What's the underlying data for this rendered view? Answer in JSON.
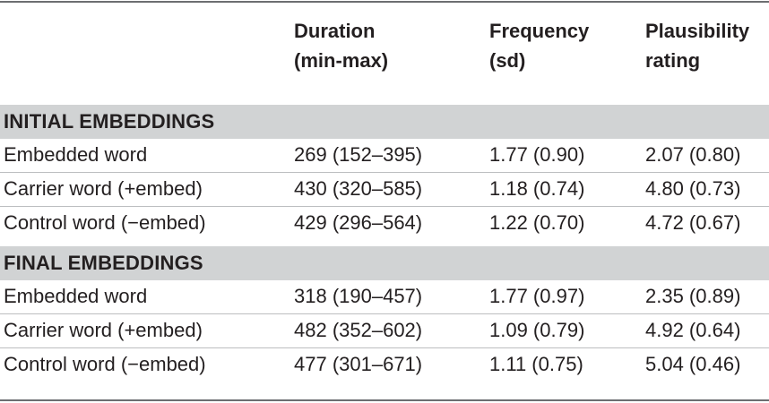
{
  "columns": [
    "",
    "Duration\n(min-max)",
    "Frequency\n(sd)",
    "Plausibility\nrating"
  ],
  "header": {
    "col1_line1": "Duration",
    "col1_line2": "(min-max)",
    "col2_line1": "Frequency",
    "col2_line2": "(sd)",
    "col3_line1": "Plausibility",
    "col3_line2": "rating"
  },
  "sections": [
    {
      "title": "INITIAL EMBEDDINGS",
      "rows": [
        {
          "label": "Embedded word",
          "duration": "269 (152–395)",
          "frequency": "1.77 (0.90)",
          "plausibility": "2.07 (0.80)"
        },
        {
          "label": "Carrier word (+embed)",
          "duration": "430 (320–585)",
          "frequency": "1.18 (0.74)",
          "plausibility": "4.80 (0.73)"
        },
        {
          "label": "Control word (−embed)",
          "duration": "429 (296–564)",
          "frequency": "1.22 (0.70)",
          "plausibility": "4.72 (0.67)"
        }
      ]
    },
    {
      "title": "FINAL EMBEDDINGS",
      "rows": [
        {
          "label": "Embedded word",
          "duration": "318 (190–457)",
          "frequency": "1.77 (0.97)",
          "plausibility": "2.35 (0.89)"
        },
        {
          "label": "Carrier word (+embed)",
          "duration": "482 (352–602)",
          "frequency": "1.09 (0.79)",
          "plausibility": "4.92 (0.64)"
        },
        {
          "label": "Control word (−embed)",
          "duration": "477 (301–671)",
          "frequency": "1.11 (0.75)",
          "plausibility": "5.04 (0.46)"
        }
      ]
    }
  ],
  "colors": {
    "section_band": "#d1d3d4",
    "rule": "#6d6e71",
    "row_divider": "#bcbec0",
    "text": "#231f20"
  }
}
